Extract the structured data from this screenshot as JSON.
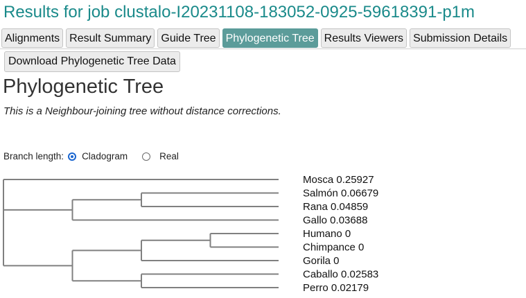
{
  "header": {
    "title": "Results for job clustalo-I20231108-183052-0925-59618391-p1m"
  },
  "tabs": [
    {
      "label": "Alignments",
      "active": false
    },
    {
      "label": "Result Summary",
      "active": false
    },
    {
      "label": "Guide Tree",
      "active": false
    },
    {
      "label": "Phylogenetic Tree",
      "active": true
    },
    {
      "label": "Results Viewers",
      "active": false
    },
    {
      "label": "Submission Details",
      "active": false
    }
  ],
  "download_button": "Download Phylogenetic Tree Data",
  "section": {
    "heading": "Phylogenetic Tree",
    "description": "This is a Neighbour-joining tree without distance corrections."
  },
  "branch_length": {
    "label": "Branch length:",
    "options": [
      {
        "label": "Cladogram",
        "selected": true
      },
      {
        "label": "Real",
        "selected": false
      }
    ]
  },
  "tree": {
    "leaves": [
      {
        "name": "Mosca",
        "distance": "0.25927"
      },
      {
        "name": "Salmón",
        "distance": "0.06679"
      },
      {
        "name": "Rana",
        "distance": "0.04859"
      },
      {
        "name": "Gallo",
        "distance": "0.03688"
      },
      {
        "name": "Humano",
        "distance": "0"
      },
      {
        "name": "Chimpance",
        "distance": "0"
      },
      {
        "name": "Gorila",
        "distance": "0"
      },
      {
        "name": "Caballo",
        "distance": "0.02583"
      },
      {
        "name": "Perro",
        "distance": "0.02179"
      }
    ],
    "newick": "(Mosca,((Salmón,Rana),Gallo),(((Humano,Chimpance),Gorila),(Caballo,Perro)))",
    "line_color": "#808080",
    "text_color": "#111111"
  },
  "colors": {
    "title": "#1a8a8a",
    "active_tab": "#5c9c9a",
    "radio_selected": "#1a66d0"
  }
}
